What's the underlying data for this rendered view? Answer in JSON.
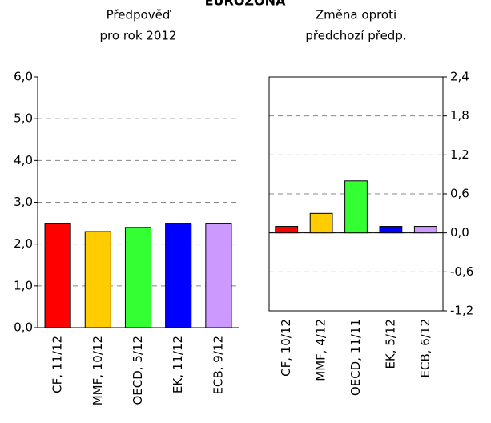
{
  "title": "EUROZÓNA",
  "chart_data": [
    {
      "type": "bar",
      "title": "Předpověď",
      "subtitle": "pro rok 2012",
      "categories": [
        "CF, 11/12",
        "MMF, 10/12",
        "OECD, 5/12",
        "EK, 11/12",
        "ECB, 9/12"
      ],
      "values": [
        2.5,
        2.3,
        2.4,
        2.5,
        2.5
      ],
      "colors": [
        "#ff0000",
        "#ffcc00",
        "#33ff33",
        "#0000ff",
        "#cc99ff"
      ],
      "ylim": [
        0,
        6
      ],
      "yticks": [
        {
          "value": 0,
          "label": "0,0"
        },
        {
          "value": 1,
          "label": "1,0"
        },
        {
          "value": 2,
          "label": "2,0"
        },
        {
          "value": 3,
          "label": "3,0"
        },
        {
          "value": 4,
          "label": "4,0"
        },
        {
          "value": 5,
          "label": "5,0"
        },
        {
          "value": 6,
          "label": "6,0"
        }
      ],
      "grid": true,
      "y_axis_side": "left"
    },
    {
      "type": "bar",
      "title": "Změna oproti",
      "subtitle": "předchozí předp.",
      "categories": [
        "CF, 10/12",
        "MMF, 4/12",
        "OECD, 11/11",
        "EK, 5/12",
        "ECB, 6/12"
      ],
      "values": [
        0.1,
        0.3,
        0.8,
        0.1,
        0.1
      ],
      "colors": [
        "#ff0000",
        "#ffcc00",
        "#33ff33",
        "#0000ff",
        "#cc99ff"
      ],
      "ylim": [
        -1.2,
        2.4
      ],
      "yticks": [
        {
          "value": -1.2,
          "label": "-1,2"
        },
        {
          "value": -0.6,
          "label": "-0,6"
        },
        {
          "value": 0,
          "label": "0,0"
        },
        {
          "value": 0.6,
          "label": "0,6"
        },
        {
          "value": 1.2,
          "label": "1,2"
        },
        {
          "value": 1.8,
          "label": "1,8"
        },
        {
          "value": 2.4,
          "label": "2,4"
        }
      ],
      "grid": true,
      "y_axis_side": "right"
    }
  ]
}
